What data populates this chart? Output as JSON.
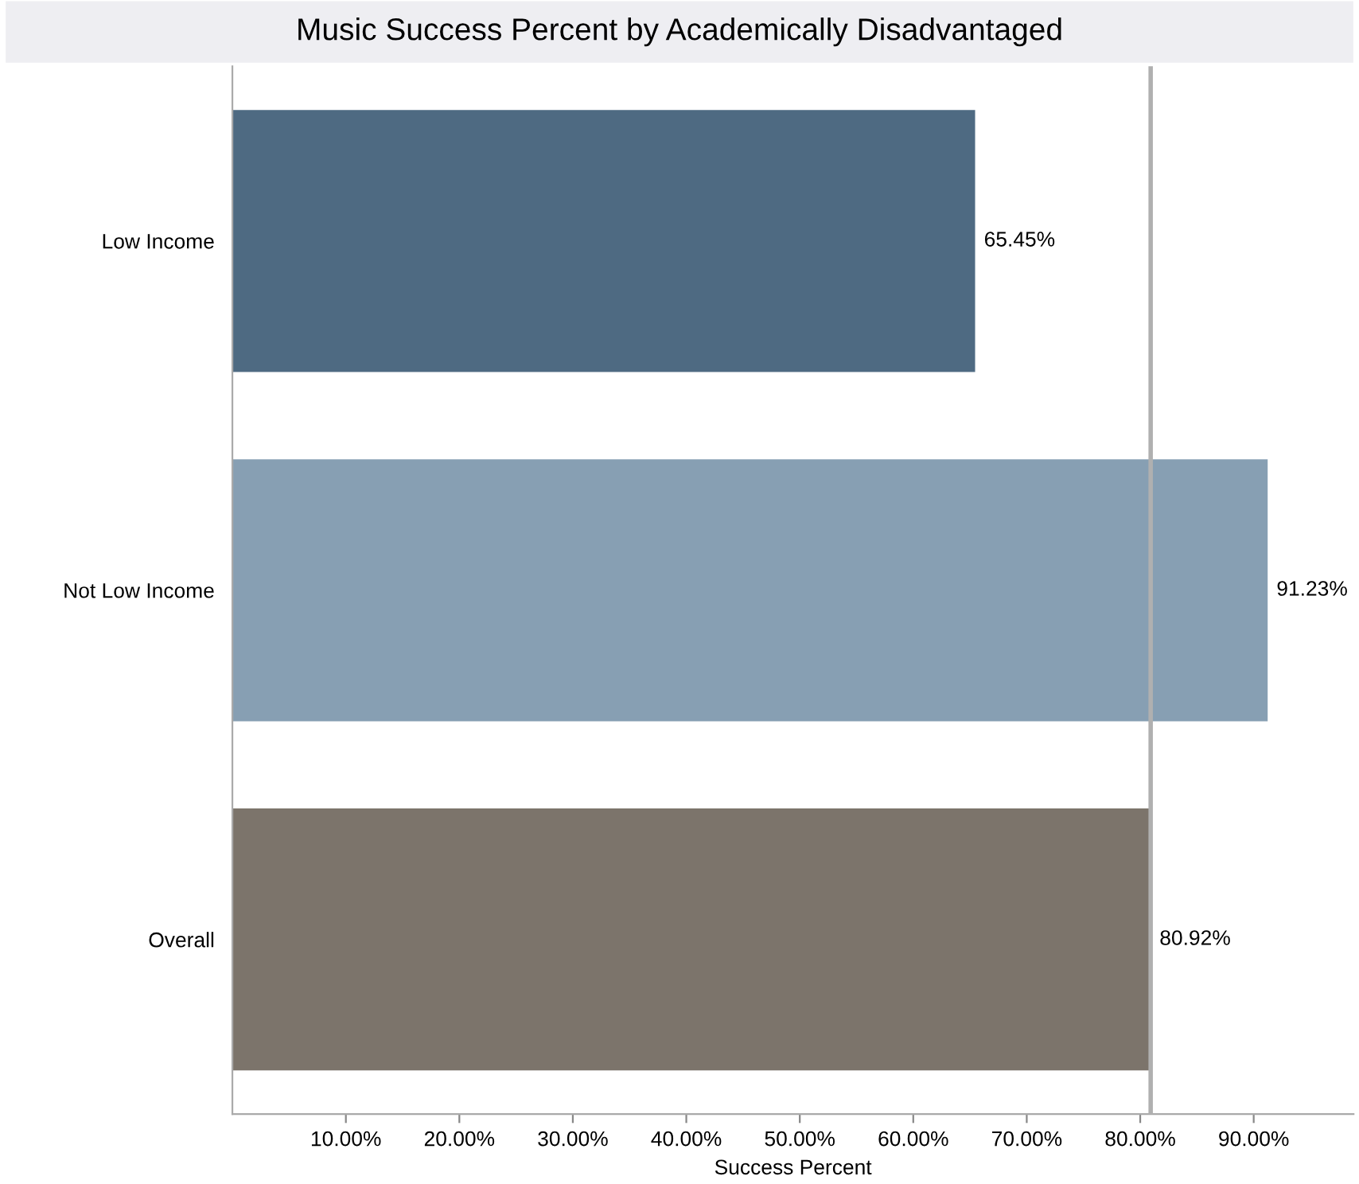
{
  "chart_data": {
    "type": "bar",
    "orientation": "horizontal",
    "title": "Music Success Percent by Academically Disadvantaged",
    "xlabel": "Success Percent",
    "categories": [
      "Low Income",
      "Not Low Income",
      "Overall"
    ],
    "values": [
      65.45,
      91.23,
      80.92
    ],
    "colors": [
      "#4e6a82",
      "#879fb3",
      "#7c746b"
    ],
    "value_labels": [
      "65.45%",
      "91.23%",
      "80.92%"
    ],
    "xlim": [
      0,
      98.8
    ],
    "xticks": [
      {
        "value": 10,
        "label": "10.00%"
      },
      {
        "value": 20,
        "label": "20.00%"
      },
      {
        "value": 30,
        "label": "30.00%"
      },
      {
        "value": 40,
        "label": "40.00%"
      },
      {
        "value": 50,
        "label": "50.00%"
      },
      {
        "value": 60,
        "label": "60.00%"
      },
      {
        "value": 70,
        "label": "70.00%"
      },
      {
        "value": 80,
        "label": "80.00%"
      },
      {
        "value": 90,
        "label": "90.00%"
      }
    ],
    "ref_lines": [
      {
        "axis": "x",
        "value": 80.92,
        "color": "#b0b0b0"
      }
    ],
    "grid": false
  }
}
